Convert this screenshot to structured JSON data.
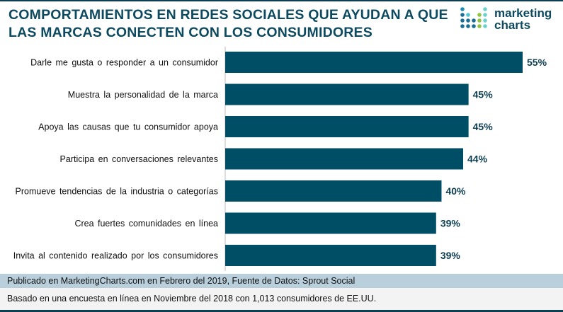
{
  "chart_data": {
    "type": "bar",
    "orientation": "horizontal",
    "title": "COMPORTAMIENTOS EN REDES SOCIALES QUE AYUDAN A QUE LAS MARCAS CONECTEN CON LOS CONSUMIDORES",
    "title_lines": [
      "COMPORTAMIENTOS EN REDES SOCIALES QUE AYUDAN A QUE",
      "LAS MARCAS CONECTEN CON LOS CONSUMIDORES"
    ],
    "categories": [
      "Darle me gusta o responder a un consumidor",
      "Muestra la personalidad de la marca",
      "Apoya las causas que tu consumidor apoya",
      "Participa en conversaciones relevantes",
      "Promueve tendencias de la industria o categorías",
      "Crea fuertes comunidades en línea",
      "Invita al contenido realizado por los consumidores"
    ],
    "values": [
      55,
      45,
      45,
      44,
      40,
      39,
      39
    ],
    "data_labels": [
      "55%",
      "45%",
      "45%",
      "44%",
      "40%",
      "39%",
      "39%"
    ],
    "bar_color": "#004d66",
    "xlim": [
      0,
      55
    ],
    "grid": false
  },
  "logo": {
    "line1": "marketing",
    "line2": "charts"
  },
  "footer": {
    "source": "Publicado en MarketingCharts.com en Febrero del 2019, Fuente de Datos: Sprout Social",
    "note": "Basado en una encuesta en línea en Noviembre del 2018 con 1,013 consumidores de EE.UU."
  }
}
